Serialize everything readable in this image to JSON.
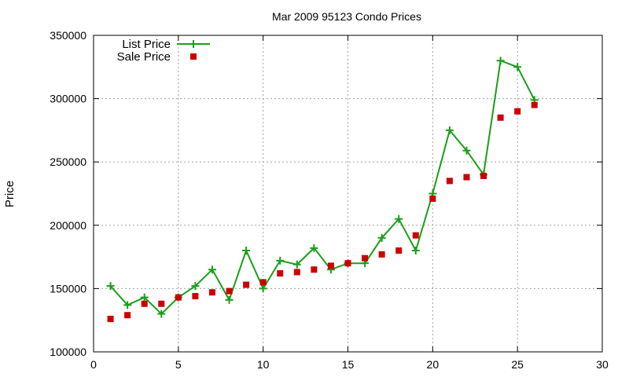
{
  "chart_data": {
    "type": "line",
    "title": "Mar 2009 95123 Condo Prices",
    "xlabel": "",
    "ylabel": "Price",
    "xlim": [
      0,
      30
    ],
    "ylim": [
      100000,
      350000
    ],
    "xticks": [
      0,
      5,
      10,
      15,
      20,
      25,
      30
    ],
    "yticks": [
      100000,
      150000,
      200000,
      250000,
      300000,
      350000
    ],
    "grid": true,
    "legend_position": "top-left",
    "x": [
      1,
      2,
      3,
      4,
      5,
      6,
      7,
      8,
      9,
      10,
      11,
      12,
      13,
      14,
      15,
      16,
      17,
      18,
      19,
      20,
      21,
      22,
      23,
      24,
      25,
      26
    ],
    "series": [
      {
        "name": "List Price",
        "style": "line-with-plus-markers",
        "color": "#1a9e1a",
        "values": [
          152000,
          137000,
          143000,
          130000,
          143000,
          152000,
          165000,
          141000,
          180000,
          150000,
          172000,
          169000,
          182000,
          165000,
          170000,
          170000,
          190000,
          205000,
          180000,
          225000,
          275000,
          259000,
          240000,
          330000,
          325000,
          299000
        ]
      },
      {
        "name": "Sale Price",
        "style": "square-markers",
        "color": "#cc0000",
        "values": [
          126000,
          129000,
          138000,
          138000,
          143000,
          144000,
          147000,
          148000,
          153000,
          155000,
          162000,
          163000,
          165000,
          168000,
          170000,
          174000,
          177000,
          180000,
          192000,
          221000,
          235000,
          238000,
          239000,
          285000,
          290000,
          295000
        ]
      }
    ]
  }
}
